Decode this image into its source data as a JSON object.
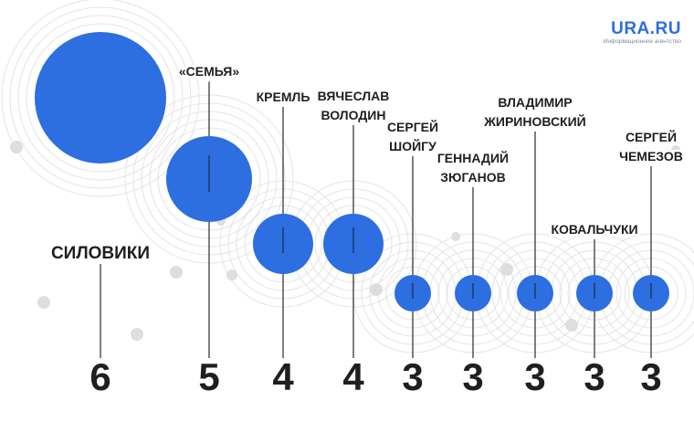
{
  "logo": {
    "name": "URA.RU",
    "tagline": "Информационное агентство"
  },
  "colors": {
    "bubble": "#2d6ee0",
    "text": "#1f1f1f",
    "rings": "#e4e4e4",
    "dots": "#dedede"
  },
  "chart_data": {
    "type": "bubble",
    "title": "",
    "xlabel": "",
    "ylabel": "",
    "categories": [
      [
        "СИЛОВИКИ"
      ],
      [
        "«СЕМЬЯ»"
      ],
      [
        "КРЕМЛЬ"
      ],
      [
        "ВЯЧЕСЛАВ",
        "ВОЛОДИН"
      ],
      [
        "СЕРГЕЙ",
        "ШОЙГУ"
      ],
      [
        "ГЕННАДИЙ",
        "ЗЮГАНОВ"
      ],
      [
        "ВЛАДИМИР",
        "ЖИРИНОВСКИЙ"
      ],
      [
        "КОВАЛЬЧУКИ"
      ],
      [
        "СЕРГЕЙ",
        "ЧЕМЕЗОВ"
      ]
    ],
    "values": [
      6,
      5,
      4,
      4,
      3,
      3,
      3,
      3,
      3
    ]
  }
}
